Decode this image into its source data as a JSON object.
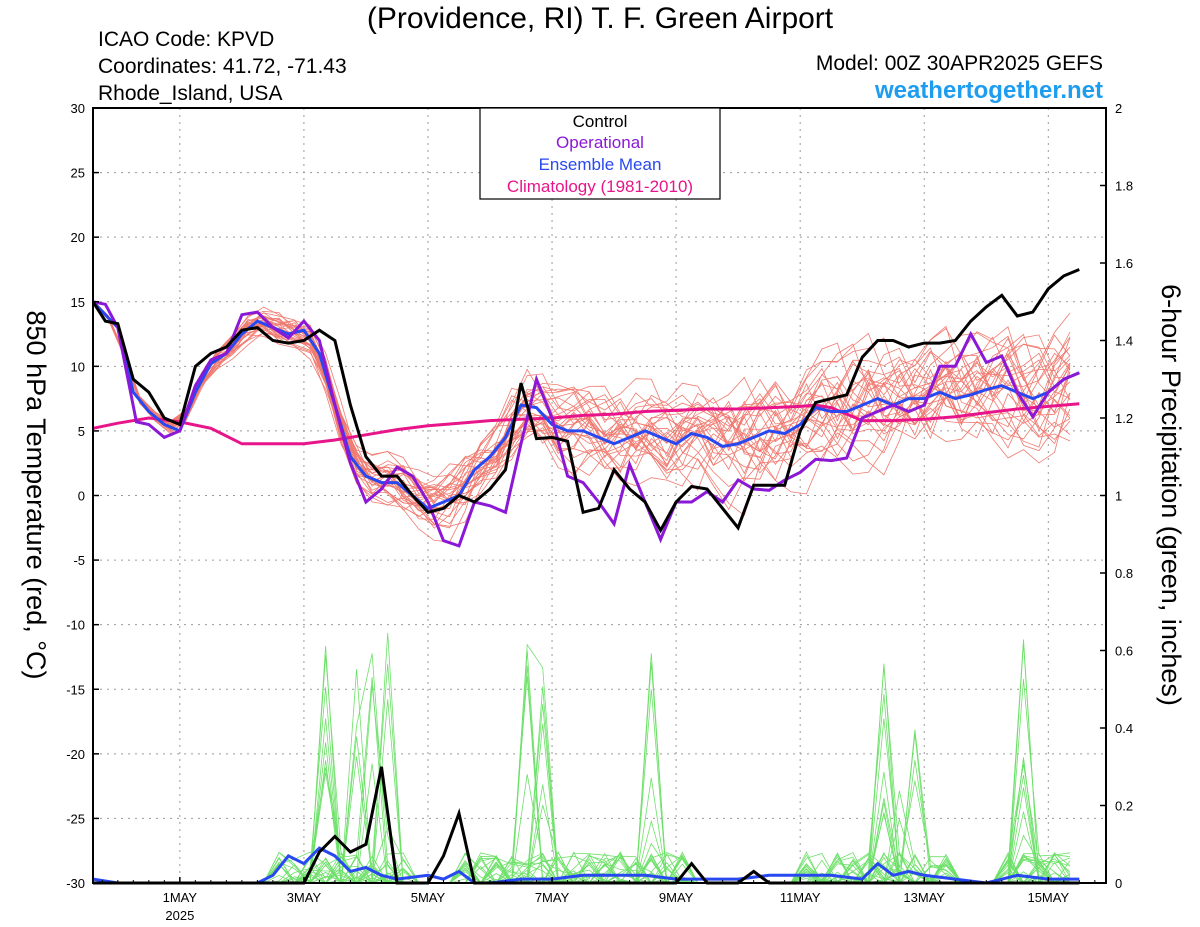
{
  "header": {
    "title": "(Providence, RI) T. F. Green Airport",
    "icao": "ICAO Code: KPVD",
    "coordinates": "Coordinates: 41.72, -71.43",
    "region": "Rhode_Island, USA",
    "model": "Model: 00Z 30APR2025 GEFS",
    "site": "weathertogether.net"
  },
  "chart_data": {
    "type": "line",
    "ylabel_left": "850 hPa Temperature (red, °C)",
    "ylabel_right": "6-hour Precipitation (green, inches)",
    "x_range_days": [
      -0.4,
      15.93
    ],
    "ylim_left": [
      -30,
      30
    ],
    "ylim_right": [
      0,
      2
    ],
    "left_ticks": [
      "30",
      "25",
      "20",
      "15",
      "10",
      "5",
      "0",
      "-5",
      "-10",
      "-15",
      "-20",
      "-25",
      "-30"
    ],
    "right_ticks": [
      "2",
      "1.8",
      "1.6",
      "1.4",
      "1.2",
      "1",
      "0.8",
      "0.6",
      "0.4",
      "0.2",
      "0"
    ],
    "x_ticks": [
      {
        "day": 1,
        "label": "1MAY",
        "sub": "2025"
      },
      {
        "day": 3,
        "label": "3MAY",
        "sub": ""
      },
      {
        "day": 5,
        "label": "5MAY",
        "sub": ""
      },
      {
        "day": 7,
        "label": "7MAY",
        "sub": ""
      },
      {
        "day": 9,
        "label": "9MAY",
        "sub": ""
      },
      {
        "day": 11,
        "label": "11MAY",
        "sub": ""
      },
      {
        "day": 13,
        "label": "13MAY",
        "sub": ""
      },
      {
        "day": 15,
        "label": "15MAY",
        "sub": ""
      }
    ],
    "legend": [
      {
        "label": "Control",
        "color": "#000000"
      },
      {
        "label": "Operational",
        "color": "#8a18d6"
      },
      {
        "label": "Ensemble Mean",
        "color": "#2848f0"
      },
      {
        "label": "Climatology (1981-2010)",
        "color": "#e8158a"
      }
    ],
    "colors": {
      "members_temp": "#f07a70",
      "members_precip": "#6ee06a",
      "control": "#000000",
      "operational": "#8a18d6",
      "mean": "#2848f0",
      "climatology": "#e8158a"
    },
    "series": {
      "control_temp": [
        [
          -0.4,
          15
        ],
        [
          -0.2,
          13.5
        ],
        [
          0,
          13.3
        ],
        [
          0.25,
          9
        ],
        [
          0.5,
          8
        ],
        [
          0.75,
          6
        ],
        [
          1,
          5.5
        ],
        [
          1.25,
          10
        ],
        [
          1.5,
          11
        ],
        [
          1.75,
          11.5
        ],
        [
          2,
          12.8
        ],
        [
          2.25,
          13
        ],
        [
          2.5,
          12
        ],
        [
          2.75,
          11.8
        ],
        [
          3,
          12
        ],
        [
          3.25,
          12.8
        ],
        [
          3.5,
          12
        ],
        [
          3.75,
          7
        ],
        [
          4,
          3
        ],
        [
          4.25,
          1.5
        ],
        [
          4.5,
          1.5
        ],
        [
          4.75,
          0
        ],
        [
          5,
          -1.3
        ],
        [
          5.25,
          -1
        ],
        [
          5.5,
          0
        ],
        [
          5.75,
          -0.5
        ],
        [
          6,
          0.5
        ],
        [
          6.25,
          2
        ],
        [
          6.5,
          8.7
        ],
        [
          6.75,
          4.4
        ],
        [
          7,
          4.5
        ],
        [
          7.25,
          4.2
        ],
        [
          7.5,
          -1.3
        ],
        [
          7.75,
          -1
        ],
        [
          8,
          2
        ],
        [
          8.25,
          0.5
        ],
        [
          8.5,
          -0.5
        ],
        [
          8.75,
          -2.7
        ],
        [
          9,
          -0.5
        ],
        [
          9.25,
          0.7
        ],
        [
          9.5,
          0.5
        ],
        [
          9.75,
          -1
        ],
        [
          10,
          -2.5
        ],
        [
          10.25,
          0.8
        ],
        [
          10.5,
          0.8
        ],
        [
          10.75,
          0.8
        ],
        [
          11,
          5
        ],
        [
          11.25,
          7.2
        ],
        [
          11.5,
          7.5
        ],
        [
          11.75,
          7.8
        ],
        [
          12,
          10.7
        ],
        [
          12.25,
          12
        ],
        [
          12.5,
          12
        ],
        [
          12.75,
          11.5
        ],
        [
          13,
          11.8
        ],
        [
          13.25,
          11.8
        ],
        [
          13.5,
          12
        ],
        [
          13.75,
          13.5
        ],
        [
          14,
          14.6
        ],
        [
          14.25,
          15.5
        ],
        [
          14.5,
          13.9
        ],
        [
          14.75,
          14.2
        ],
        [
          15,
          16
        ],
        [
          15.25,
          17
        ],
        [
          15.5,
          17.5
        ]
      ],
      "operational_temp": [
        [
          -0.4,
          15
        ],
        [
          -0.2,
          14.8
        ],
        [
          0,
          13
        ],
        [
          0.3,
          5.7
        ],
        [
          0.5,
          5.5
        ],
        [
          0.75,
          4.5
        ],
        [
          1,
          5
        ],
        [
          1.25,
          8.5
        ],
        [
          1.5,
          10.5
        ],
        [
          1.75,
          11
        ],
        [
          2,
          14
        ],
        [
          2.25,
          14.2
        ],
        [
          2.5,
          13
        ],
        [
          2.75,
          12.2
        ],
        [
          3,
          13.5
        ],
        [
          3.25,
          12
        ],
        [
          3.5,
          7
        ],
        [
          3.75,
          2.5
        ],
        [
          4,
          -0.5
        ],
        [
          4.25,
          0.5
        ],
        [
          4.5,
          2.2
        ],
        [
          4.75,
          1.5
        ],
        [
          5,
          -0.5
        ],
        [
          5.25,
          -3.5
        ],
        [
          5.5,
          -3.9
        ],
        [
          5.75,
          -0.5
        ],
        [
          6,
          -0.8
        ],
        [
          6.25,
          -1.3
        ],
        [
          6.5,
          4
        ],
        [
          6.75,
          9
        ],
        [
          7,
          6
        ],
        [
          7.25,
          1.5
        ],
        [
          7.5,
          1
        ],
        [
          7.75,
          -0.5
        ],
        [
          8,
          -2.2
        ],
        [
          8.25,
          2.4
        ],
        [
          8.5,
          -0.5
        ],
        [
          8.75,
          -3.4
        ],
        [
          9,
          -0.5
        ],
        [
          9.25,
          -0.5
        ],
        [
          9.5,
          0.3
        ],
        [
          9.75,
          -0.5
        ],
        [
          10,
          1.2
        ],
        [
          10.25,
          0.5
        ],
        [
          10.5,
          0.4
        ],
        [
          10.75,
          1.2
        ],
        [
          11,
          1.8
        ],
        [
          11.25,
          2.8
        ],
        [
          11.5,
          2.7
        ],
        [
          11.75,
          2.9
        ],
        [
          12,
          6
        ],
        [
          12.25,
          6.5
        ],
        [
          12.5,
          7
        ],
        [
          12.75,
          6.5
        ],
        [
          13,
          7
        ],
        [
          13.25,
          10
        ],
        [
          13.5,
          10
        ],
        [
          13.75,
          12.5
        ],
        [
          14,
          10.3
        ],
        [
          14.25,
          10.8
        ],
        [
          14.5,
          8
        ],
        [
          14.75,
          6.1
        ],
        [
          15,
          8
        ],
        [
          15.25,
          9
        ],
        [
          15.5,
          9.5
        ]
      ],
      "mean_temp": [
        [
          -0.4,
          15
        ],
        [
          0,
          13
        ],
        [
          0.25,
          8
        ],
        [
          0.5,
          6.5
        ],
        [
          0.75,
          5.5
        ],
        [
          1,
          5
        ],
        [
          1.25,
          8
        ],
        [
          1.5,
          10.2
        ],
        [
          1.75,
          11
        ],
        [
          2,
          12.5
        ],
        [
          2.25,
          13.5
        ],
        [
          2.5,
          13
        ],
        [
          2.75,
          12.5
        ],
        [
          3,
          12.8
        ],
        [
          3.25,
          11
        ],
        [
          3.5,
          7
        ],
        [
          3.75,
          3
        ],
        [
          4,
          1.5
        ],
        [
          4.25,
          1
        ],
        [
          4.5,
          1
        ],
        [
          4.75,
          0
        ],
        [
          5,
          -1
        ],
        [
          5.25,
          -0.5
        ],
        [
          5.5,
          0
        ],
        [
          5.75,
          2
        ],
        [
          6,
          3
        ],
        [
          6.25,
          4.5
        ],
        [
          6.5,
          7
        ],
        [
          6.75,
          6.8
        ],
        [
          7,
          5.5
        ],
        [
          7.25,
          5
        ],
        [
          7.5,
          5
        ],
        [
          7.75,
          4.5
        ],
        [
          8,
          4
        ],
        [
          8.25,
          4.5
        ],
        [
          8.5,
          5
        ],
        [
          8.75,
          4.5
        ],
        [
          9,
          4
        ],
        [
          9.25,
          4.8
        ],
        [
          9.5,
          4.5
        ],
        [
          9.75,
          3.8
        ],
        [
          10,
          4
        ],
        [
          10.25,
          4.5
        ],
        [
          10.5,
          5
        ],
        [
          10.75,
          4.8
        ],
        [
          11,
          5.5
        ],
        [
          11.25,
          6.8
        ],
        [
          11.5,
          6.5
        ],
        [
          11.75,
          6.5
        ],
        [
          12,
          7
        ],
        [
          12.25,
          7.5
        ],
        [
          12.5,
          7
        ],
        [
          12.75,
          7.5
        ],
        [
          13,
          7.5
        ],
        [
          13.25,
          8
        ],
        [
          13.5,
          7.5
        ],
        [
          13.75,
          7.8
        ],
        [
          14,
          8.2
        ],
        [
          14.25,
          8.5
        ],
        [
          14.5,
          8
        ],
        [
          14.75,
          7.5
        ],
        [
          15,
          8
        ],
        [
          15.25,
          9
        ],
        [
          15.5,
          9.5
        ]
      ],
      "clim_temp": [
        [
          -0.4,
          5.2
        ],
        [
          0,
          5.6
        ],
        [
          0.5,
          6
        ],
        [
          1,
          5.7
        ],
        [
          1.5,
          5.2
        ],
        [
          2,
          4
        ],
        [
          3,
          4
        ],
        [
          3.5,
          4.3
        ],
        [
          4,
          4.7
        ],
        [
          4.5,
          5.1
        ],
        [
          5,
          5.4
        ],
        [
          5.5,
          5.6
        ],
        [
          6,
          5.8
        ],
        [
          6.5,
          5.9
        ],
        [
          7,
          6
        ],
        [
          7.5,
          6.2
        ],
        [
          8,
          6.3
        ],
        [
          8.5,
          6.5
        ],
        [
          9,
          6.6
        ],
        [
          9.5,
          6.7
        ],
        [
          10,
          6.7
        ],
        [
          10.5,
          6.8
        ],
        [
          11,
          6.9
        ],
        [
          11.25,
          7
        ],
        [
          11.5,
          6.8
        ],
        [
          11.75,
          6.3
        ],
        [
          12,
          5.8
        ],
        [
          12.5,
          5.8
        ],
        [
          13,
          5.9
        ],
        [
          13.5,
          6.1
        ],
        [
          14,
          6.4
        ],
        [
          14.5,
          6.7
        ],
        [
          15,
          6.9
        ],
        [
          15.5,
          7.1
        ]
      ],
      "control_precip": [
        [
          -0.4,
          0
        ],
        [
          2,
          0
        ],
        [
          2.5,
          0
        ],
        [
          2.75,
          0
        ],
        [
          3,
          0
        ],
        [
          3.25,
          0.08
        ],
        [
          3.5,
          0.12
        ],
        [
          3.75,
          0.08
        ],
        [
          4,
          0.1
        ],
        [
          4.25,
          0.3
        ],
        [
          4.5,
          0
        ],
        [
          5,
          0
        ],
        [
          5.25,
          0.07
        ],
        [
          5.5,
          0.18
        ],
        [
          5.75,
          0
        ],
        [
          6,
          0
        ],
        [
          9,
          0
        ],
        [
          9.25,
          0.05
        ],
        [
          9.5,
          0
        ],
        [
          10,
          0
        ],
        [
          10.25,
          0.03
        ],
        [
          10.5,
          0
        ],
        [
          15.5,
          0
        ]
      ],
      "mean_precip": [
        [
          -0.4,
          0.01
        ],
        [
          0,
          0
        ],
        [
          2,
          0
        ],
        [
          2.25,
          0
        ],
        [
          2.5,
          0.02
        ],
        [
          2.75,
          0.07
        ],
        [
          3,
          0.05
        ],
        [
          3.25,
          0.09
        ],
        [
          3.5,
          0.07
        ],
        [
          3.75,
          0.03
        ],
        [
          4,
          0.04
        ],
        [
          4.25,
          0.02
        ],
        [
          4.5,
          0.01
        ],
        [
          5,
          0.02
        ],
        [
          5.25,
          0.01
        ],
        [
          5.5,
          0.03
        ],
        [
          5.75,
          0
        ],
        [
          6,
          0
        ],
        [
          6.5,
          0.01
        ],
        [
          7,
          0.01
        ],
        [
          7.5,
          0.02
        ],
        [
          8,
          0.02
        ],
        [
          8.5,
          0.02
        ],
        [
          9,
          0.01
        ],
        [
          9.5,
          0.01
        ],
        [
          10,
          0.01
        ],
        [
          10.5,
          0.02
        ],
        [
          11,
          0.02
        ],
        [
          11.5,
          0.02
        ],
        [
          12,
          0.01
        ],
        [
          12.25,
          0.05
        ],
        [
          12.5,
          0.02
        ],
        [
          12.75,
          0.03
        ],
        [
          13,
          0.02
        ],
        [
          13.5,
          0.01
        ],
        [
          14,
          0
        ],
        [
          14.5,
          0.02
        ],
        [
          15,
          0.01
        ],
        [
          15.5,
          0.01
        ]
      ]
    }
  }
}
